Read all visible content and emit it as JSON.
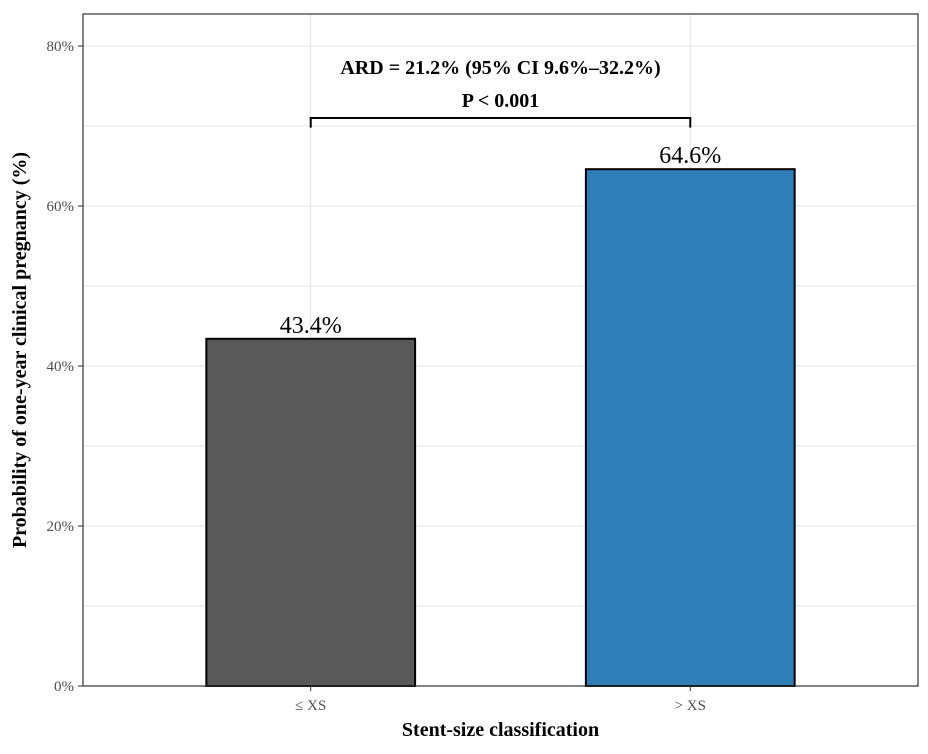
{
  "chart_data": {
    "type": "bar",
    "categories": [
      "≤ XS",
      "> XS"
    ],
    "values": [
      43.4,
      64.6
    ],
    "value_labels": [
      "43.4%",
      "64.6%"
    ],
    "colors": [
      "#595959",
      "#2e7eba"
    ],
    "title": "",
    "xlabel": "Stent-size classification",
    "ylabel": "Probability of one-year clinical pregnancy (%)",
    "ylim": [
      0,
      84
    ],
    "yticks": [
      0,
      20,
      40,
      60,
      80
    ],
    "ytick_labels": [
      "0%",
      "20%",
      "40%",
      "60%",
      "80%"
    ],
    "grid": true,
    "legend": "none",
    "annotation": {
      "line1": "ARD = 21.2% (95% CI 9.6%–32.2%)",
      "line2": "P < 0.001",
      "bracket_y": 71,
      "bracket_drop": 1.2
    }
  }
}
